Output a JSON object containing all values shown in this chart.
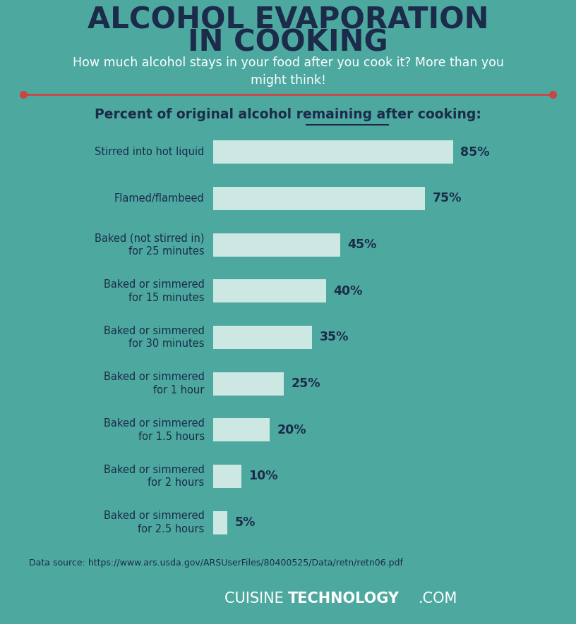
{
  "title_line1": "ALCOHOL EVAPORATION",
  "title_line2": "IN COOKING",
  "subtitle": "How much alcohol stays in your food after you cook it? More than you\nmight think!",
  "section_label_parts": [
    "Percent of original alcohol ",
    "remaining",
    " after cooking:"
  ],
  "categories": [
    "Stirred into hot liquid",
    "Flamed/flambeed",
    "Baked (not stirred in)\nfor 25 minutes",
    "Baked or simmered\nfor 15 minutes",
    "Baked or simmered\nfor 30 minutes",
    "Baked or simmered\nfor 1 hour",
    "Baked or simmered\nfor 1.5 hours",
    "Baked or simmered\nfor 2 hours",
    "Baked or simmered\nfor 2.5 hours"
  ],
  "values": [
    85,
    75,
    45,
    40,
    35,
    25,
    20,
    10,
    5
  ],
  "bg_color": "#4da9a0",
  "bar_color": "#cde8e3",
  "title_color": "#1c2b4a",
  "subtitle_color": "#ffffff",
  "label_color": "#1c2b4a",
  "value_color": "#1c2b4a",
  "section_label_color": "#1c2b4a",
  "footer_bg_color": "#1e2640",
  "footer_text_color": "#ffffff",
  "source_text_color": "#1c2b4a",
  "divider_color": "#cc4444",
  "source_text": "Data source: https://www.ars.usda.gov/ARSUserFiles/80400525/Data/retn/retn06.pdf"
}
